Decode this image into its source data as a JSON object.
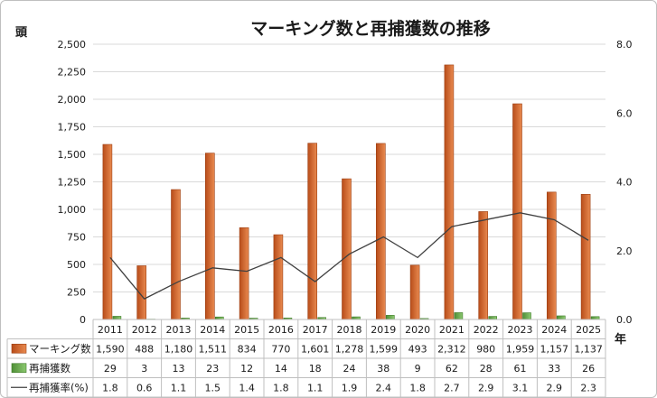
{
  "chart_data": {
    "type": "bar",
    "title": "マーキング数と再捕獲数の推移",
    "y_left_unit": "頭",
    "x_unit": "年",
    "y_left_lim": [
      0,
      2500
    ],
    "y_left_ticks": [
      "0",
      "250",
      "500",
      "750",
      "1,000",
      "1,250",
      "1,500",
      "1,750",
      "2,000",
      "2,250",
      "2,500"
    ],
    "y_right_lim": [
      0,
      8
    ],
    "y_right_ticks": [
      "0.0",
      "2.0",
      "4.0",
      "6.0",
      "8.0"
    ],
    "categories": [
      "2011",
      "2012",
      "2013",
      "2014",
      "2015",
      "2016",
      "2017",
      "2018",
      "2019",
      "2020",
      "2021",
      "2022",
      "2023",
      "2024",
      "2025"
    ],
    "series": [
      {
        "name": "マーキング数",
        "type": "bar",
        "axis": "left",
        "color": "#d9662a",
        "values": [
          1590,
          488,
          1180,
          1511,
          834,
          770,
          1601,
          1278,
          1599,
          493,
          2312,
          980,
          1959,
          1157,
          1137
        ],
        "labels": [
          "1,590",
          "488",
          "1,180",
          "1,511",
          "834",
          "770",
          "1,601",
          "1,278",
          "1,599",
          "493",
          "2,312",
          "980",
          "1,959",
          "1,157",
          "1,137"
        ]
      },
      {
        "name": "再捕獲数",
        "type": "bar",
        "axis": "left",
        "color": "#6aa84f",
        "values": [
          29,
          3,
          13,
          23,
          12,
          14,
          18,
          24,
          38,
          9,
          62,
          28,
          61,
          33,
          26
        ],
        "labels": [
          "29",
          "3",
          "13",
          "23",
          "12",
          "14",
          "18",
          "24",
          "38",
          "9",
          "62",
          "28",
          "61",
          "33",
          "26"
        ]
      },
      {
        "name": "再捕獲率(%)",
        "type": "line",
        "axis": "right",
        "color": "#404040",
        "values": [
          1.8,
          0.6,
          1.1,
          1.5,
          1.4,
          1.8,
          1.1,
          1.9,
          2.4,
          1.8,
          2.7,
          2.9,
          3.1,
          2.9,
          2.3
        ],
        "labels": [
          "1.8",
          "0.6",
          "1.1",
          "1.5",
          "1.4",
          "1.8",
          "1.1",
          "1.9",
          "2.4",
          "1.8",
          "2.7",
          "2.9",
          "3.1",
          "2.9",
          "2.3"
        ]
      }
    ],
    "grid": true
  }
}
